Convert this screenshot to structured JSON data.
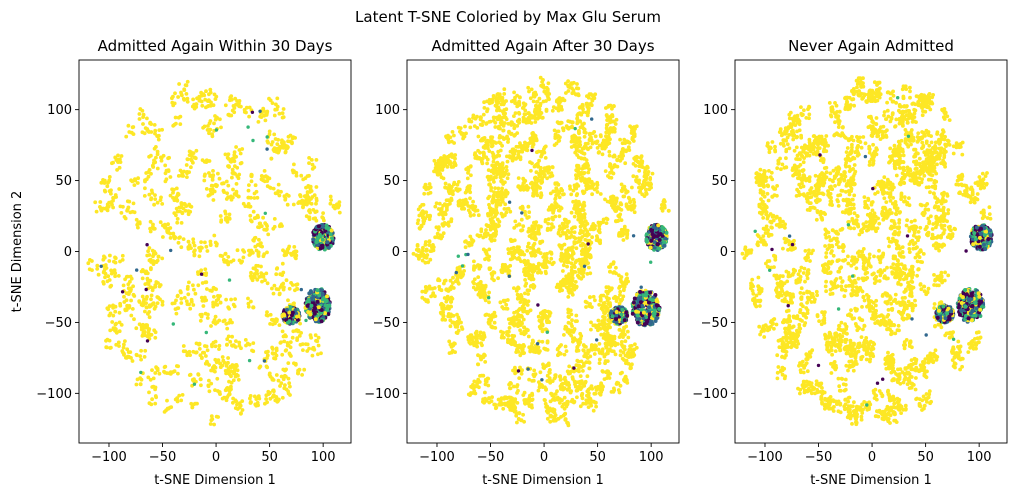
{
  "figure": {
    "suptitle": "Latent T-SNE Coloried by Max Glu Serum"
  },
  "colors": {
    "majority": "#fde725",
    "categories": [
      "#440154",
      "#31688e",
      "#35b779",
      "#fde725"
    ]
  },
  "chart_data": [
    {
      "type": "scatter",
      "title": "Admitted Again Within 30 Days",
      "xlabel": "t-SNE Dimension 1",
      "ylabel": "t-SNE Dimension 2",
      "xlim": [
        -128,
        126
      ],
      "ylim": [
        -135,
        135
      ],
      "xticks": [
        -100,
        -50,
        0,
        50,
        100
      ],
      "yticks": [
        -100,
        -50,
        0,
        50,
        100
      ],
      "xtick_labels": [
        "−100",
        "−50",
        "0",
        "50",
        "100"
      ],
      "ytick_labels": [
        "−100",
        "−50",
        "0",
        "50",
        "100"
      ],
      "grid": false,
      "point_cloud": {
        "center": [
          0,
          0
        ],
        "radii": [
          118,
          120
        ],
        "density": "sparse"
      },
      "clusters": [
        {
          "center": [
            100,
            10
          ],
          "radii": [
            10,
            9
          ],
          "mix": [
            0.3,
            0.2,
            0.35,
            0.15
          ]
        },
        {
          "center": [
            95,
            -38
          ],
          "radii": [
            12,
            12
          ],
          "mix": [
            0.25,
            0.25,
            0.3,
            0.2
          ]
        },
        {
          "center": [
            70,
            -45
          ],
          "radii": [
            8,
            6
          ],
          "mix": [
            0.3,
            0.3,
            0.2,
            0.2
          ]
        }
      ]
    },
    {
      "type": "scatter",
      "title": "Admitted Again After 30 Days",
      "xlabel": "t-SNE Dimension 1",
      "ylabel": "",
      "xlim": [
        -128,
        126
      ],
      "ylim": [
        -135,
        135
      ],
      "xticks": [
        -100,
        -50,
        0,
        50,
        100
      ],
      "yticks": [
        -100,
        -50,
        0,
        50,
        100
      ],
      "xtick_labels": [
        "−100",
        "−50",
        "0",
        "50",
        "100"
      ],
      "ytick_labels": [
        "−100",
        "−50",
        "0",
        "50",
        "100"
      ],
      "grid": false,
      "point_cloud": {
        "center": [
          0,
          0
        ],
        "radii": [
          118,
          120
        ],
        "density": "dense"
      },
      "clusters": [
        {
          "center": [
            105,
            10
          ],
          "radii": [
            10,
            9
          ],
          "mix": [
            0.25,
            0.3,
            0.3,
            0.15
          ]
        },
        {
          "center": [
            95,
            -40
          ],
          "radii": [
            13,
            13
          ],
          "mix": [
            0.3,
            0.25,
            0.25,
            0.2
          ]
        },
        {
          "center": [
            70,
            -45
          ],
          "radii": [
            8,
            6
          ],
          "mix": [
            0.3,
            0.3,
            0.25,
            0.15
          ]
        }
      ]
    },
    {
      "type": "scatter",
      "title": "Never Again Admitted",
      "xlabel": "t-SNE Dimension 1",
      "ylabel": "",
      "xlim": [
        -128,
        126
      ],
      "ylim": [
        -135,
        135
      ],
      "xticks": [
        -100,
        -50,
        0,
        50,
        100
      ],
      "yticks": [
        -100,
        -50,
        0,
        50,
        100
      ],
      "xtick_labels": [
        "−100",
        "−50",
        "0",
        "50",
        "100"
      ],
      "ytick_labels": [
        "−100",
        "−50",
        "0",
        "50",
        "100"
      ],
      "grid": false,
      "point_cloud": {
        "center": [
          0,
          0
        ],
        "radii": [
          118,
          122
        ],
        "density": "dense"
      },
      "clusters": [
        {
          "center": [
            102,
            10
          ],
          "radii": [
            10,
            9
          ],
          "mix": [
            0.3,
            0.25,
            0.3,
            0.15
          ]
        },
        {
          "center": [
            92,
            -38
          ],
          "radii": [
            12,
            12
          ],
          "mix": [
            0.3,
            0.25,
            0.25,
            0.2
          ]
        },
        {
          "center": [
            68,
            -44
          ],
          "radii": [
            8,
            6
          ],
          "mix": [
            0.3,
            0.3,
            0.2,
            0.2
          ]
        }
      ]
    }
  ]
}
